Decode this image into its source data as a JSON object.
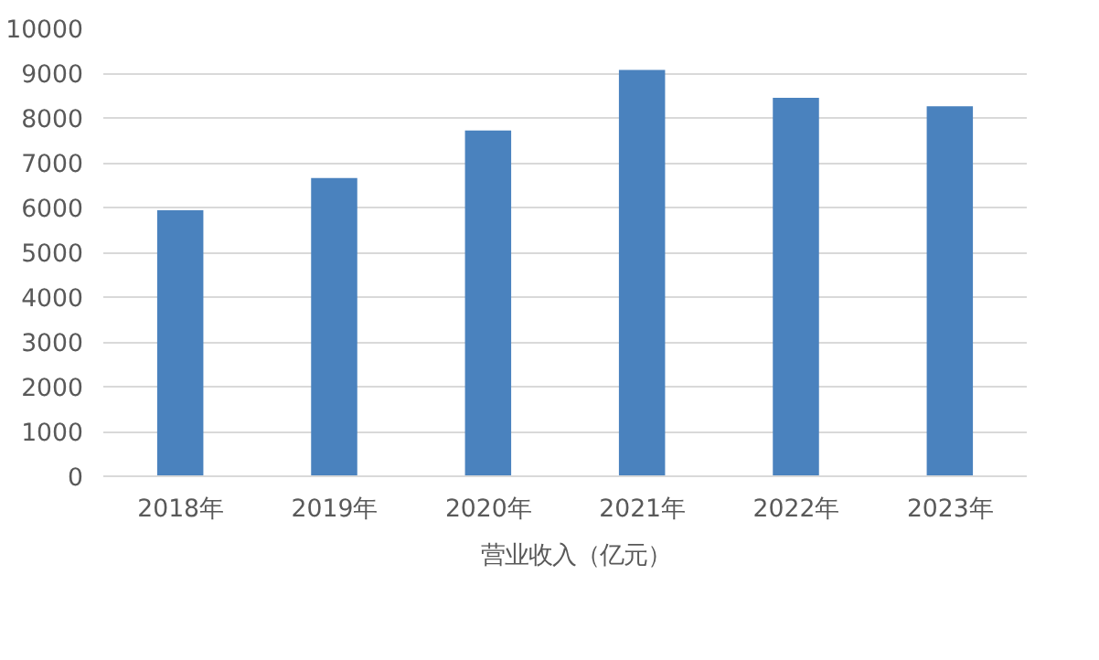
{
  "chart_data": {
    "type": "bar",
    "categories": [
      "2018年",
      "2019年",
      "2020年",
      "2021年",
      "2022年",
      "2023年"
    ],
    "series": [
      {
        "name": "营业收入（亿元）",
        "color": "#4a82be",
        "values": [
          5940,
          6660,
          7720,
          9070,
          8450,
          8260
        ]
      }
    ],
    "ylim": [
      0,
      10000
    ],
    "yticks": [
      0,
      1000,
      2000,
      3000,
      4000,
      5000,
      6000,
      7000,
      8000,
      9000,
      10000
    ],
    "grid": "y",
    "legend": "bottom"
  }
}
